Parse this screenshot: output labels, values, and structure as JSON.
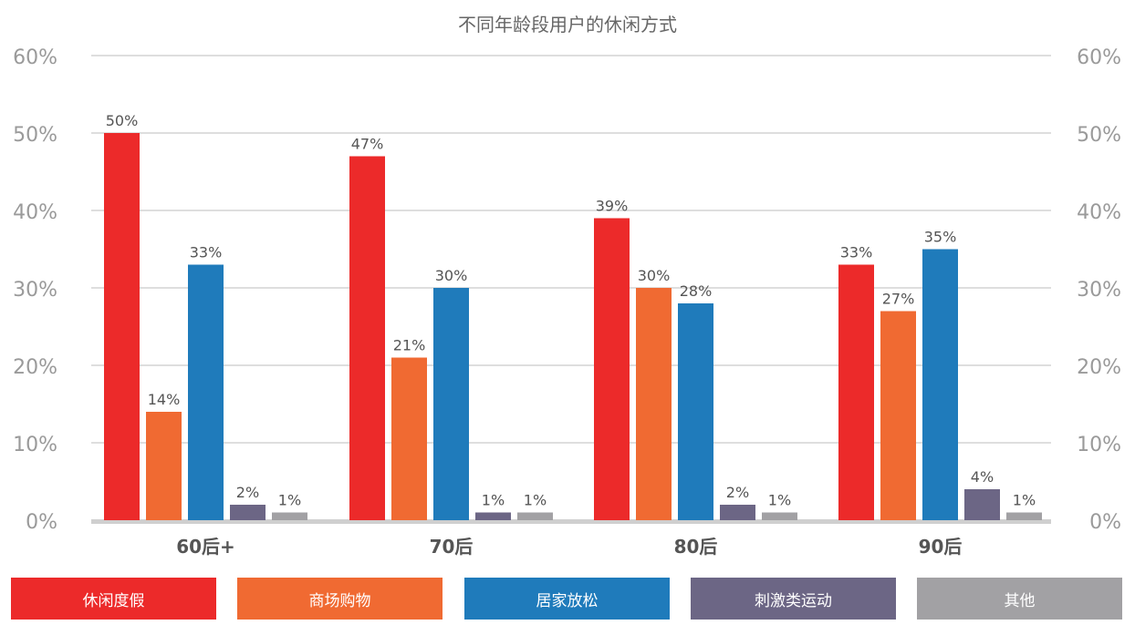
{
  "chart_data": {
    "type": "bar",
    "title": "不同年龄段用户的休闲方式",
    "categories": [
      "60后+",
      "70后",
      "80后",
      "90后"
    ],
    "series": [
      {
        "name": "休闲度假",
        "color": "#ec2a2a",
        "values": [
          50,
          47,
          39,
          33
        ],
        "labels": [
          "50%",
          "47%",
          "39%",
          "33%"
        ]
      },
      {
        "name": "商场购物",
        "color": "#f06a32",
        "values": [
          14,
          21,
          30,
          27
        ],
        "labels": [
          "14%",
          "21%",
          "30%",
          "27%"
        ]
      },
      {
        "name": "居家放松",
        "color": "#1f7bbb",
        "values": [
          33,
          30,
          28,
          35
        ],
        "labels": [
          "33%",
          "30%",
          "28%",
          "35%"
        ]
      },
      {
        "name": "刺激类运动",
        "color": "#6c6685",
        "values": [
          2,
          1,
          2,
          4
        ],
        "labels": [
          "2%",
          "1%",
          "2%",
          "4%"
        ]
      },
      {
        "name": "其他",
        "color": "#a2a1a4",
        "values": [
          1,
          1,
          1,
          1
        ],
        "labels": [
          "1%",
          "1%",
          "1%",
          "1%"
        ]
      }
    ],
    "y_ticks": [
      "0%",
      "10%",
      "20%",
      "30%",
      "40%",
      "50%",
      "60%"
    ],
    "ylim": [
      0,
      60
    ],
    "grid": true,
    "legend_position": "bottom",
    "dual_axis_labels": true
  }
}
